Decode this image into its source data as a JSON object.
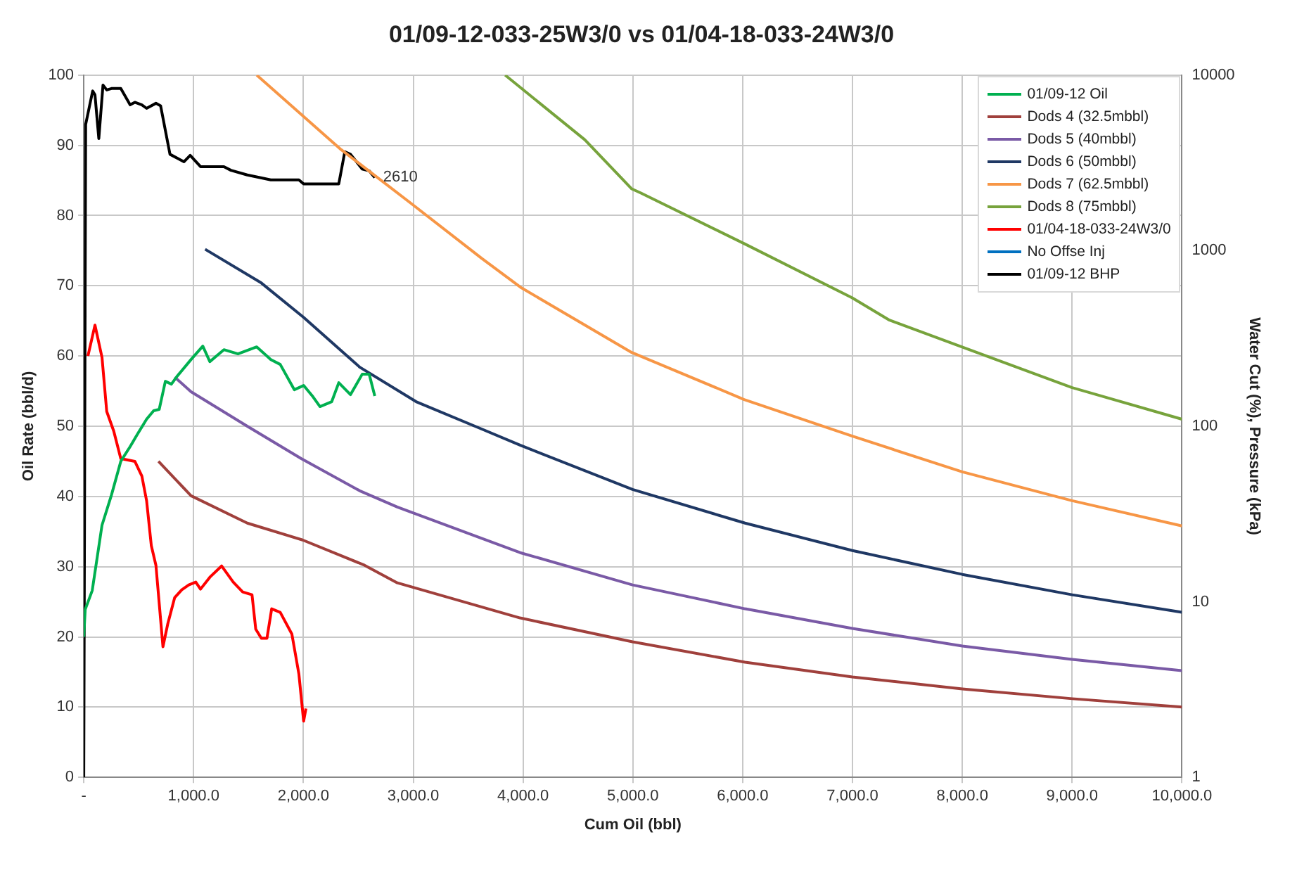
{
  "chart_data": {
    "type": "line",
    "title": "01/09-12-033-25W3/0 vs 01/04-18-033-24W3/0",
    "xlabel": "Cum Oil (bbl)",
    "ylabel": "Oil Rate (bbl/d)",
    "y2label": "Water Cut (%), Pressure (kPa)",
    "xlim": [
      0,
      10000
    ],
    "xticks": [
      {
        "value": 0,
        "label": "-"
      },
      {
        "value": 1000,
        "label": "1,000.0"
      },
      {
        "value": 2000,
        "label": "2,000.0"
      },
      {
        "value": 3000,
        "label": "3,000.0"
      },
      {
        "value": 4000,
        "label": "4,000.0"
      },
      {
        "value": 5000,
        "label": "5,000.0"
      },
      {
        "value": 6000,
        "label": "6,000.0"
      },
      {
        "value": 7000,
        "label": "7,000.0"
      },
      {
        "value": 8000,
        "label": "8,000.0"
      },
      {
        "value": 9000,
        "label": "9,000.0"
      },
      {
        "value": 10000,
        "label": "10,000.0"
      }
    ],
    "ylim": [
      0,
      100
    ],
    "yticks": [
      0,
      10,
      20,
      30,
      40,
      50,
      60,
      70,
      80,
      90,
      100
    ],
    "y2lim": [
      1,
      10000
    ],
    "y2ticks": [
      1,
      10,
      100,
      1000,
      10000
    ],
    "log": "y2",
    "grid": true,
    "legend": "top right",
    "marker": "none",
    "line_style": "solid",
    "annotations": [
      "2610"
    ],
    "series": [
      {
        "name": "01/09-12 Oil",
        "color": "#00b050",
        "x": [
          0,
          13,
          77,
          166,
          252,
          337,
          422,
          486,
          572,
          636,
          687,
          743,
          798,
          849,
          977,
          1084,
          1148,
          1276,
          1404,
          1575,
          1703,
          1789,
          1917,
          2002,
          2087,
          2151,
          2258,
          2322,
          2429,
          2535,
          2599,
          2650
        ],
        "values": [
          20,
          23.9,
          26.6,
          35.9,
          40.2,
          45,
          47.1,
          48.8,
          51,
          52.2,
          52.4,
          56.4,
          56,
          57.1,
          59.5,
          61.4,
          59.2,
          60.9,
          60.3,
          61.3,
          59.5,
          58.8,
          55.2,
          55.8,
          54.2,
          52.8,
          53.5,
          56.2,
          54.5,
          57.4,
          57.4,
          54.3
        ]
      },
      {
        "name": "Dods 4 (32.5mbbl)",
        "color": "#a0403c",
        "x": [
          680,
          977,
          1489,
          1993,
          2557,
          2855,
          3973,
          4997,
          6022,
          6999,
          8000,
          9001,
          10000
        ],
        "values": [
          45,
          40.1,
          36.2,
          33.8,
          30.2,
          27.7,
          22.7,
          19.3,
          16.4,
          14.3,
          12.6,
          11.2,
          10
        ]
      },
      {
        "name": "Dods 5 (40mbbl)",
        "color": "#7a5aa6",
        "x": [
          828,
          977,
          1489,
          1980,
          2514,
          2855,
          3973,
          4997,
          6022,
          6999,
          8000,
          9000,
          10000
        ],
        "values": [
          57,
          54.9,
          50,
          45.4,
          40.8,
          38.5,
          32,
          27.4,
          24,
          21.2,
          18.7,
          16.8,
          15.2
        ]
      },
      {
        "name": "Dods 6 (50mbbl)",
        "color": "#1f3864",
        "x": [
          1105,
          1617,
          2002,
          2514,
          3026,
          3624,
          3973,
          4997,
          6022,
          6999,
          8000,
          9000,
          10000
        ],
        "values": [
          75.2,
          70.4,
          65.5,
          58.4,
          53.5,
          49.6,
          47.3,
          41,
          36.2,
          32.3,
          28.9,
          26,
          23.5
        ]
      },
      {
        "name": "Dods 7 (62.5mbbl)",
        "color": "#f79646",
        "x": [
          1575,
          2343,
          2983,
          3624,
          3986,
          4990,
          6014,
          6995,
          8000,
          9000,
          10000
        ],
        "values": [
          100,
          89.4,
          81.7,
          73.9,
          69.7,
          60.5,
          53.8,
          48.6,
          43.5,
          39.4,
          35.8
        ]
      },
      {
        "name": "Dods 8 (75mbbl)",
        "color": "#77a33c",
        "x": [
          3837,
          4562,
          4990,
          5074,
          6014,
          6995,
          7337,
          7977,
          9000,
          10000
        ],
        "values": [
          100,
          90.8,
          83.8,
          83.2,
          76,
          68.3,
          65.1,
          61.4,
          55.5,
          51
        ]
      },
      {
        "name": "01/04-18-033-24W3/0",
        "color": "#ff0000",
        "x": [
          38,
          102,
          166,
          209,
          273,
          337,
          465,
          529,
          572,
          615,
          657,
          721,
          764,
          828,
          892,
          956,
          1020,
          1063,
          1148,
          1255,
          1361,
          1447,
          1532,
          1566,
          1617,
          1668,
          1711,
          1789,
          1895,
          1959,
          2002,
          2023
        ],
        "values": [
          60,
          64.4,
          59.8,
          52.1,
          49.3,
          45.4,
          45,
          42.9,
          39.4,
          33,
          30.2,
          18.6,
          21.8,
          25.6,
          26.7,
          27.4,
          27.8,
          26.8,
          28.5,
          30.1,
          27.8,
          26.4,
          26,
          21.1,
          19.8,
          19.8,
          24,
          23.5,
          20.4,
          14.7,
          8,
          9.8
        ]
      },
      {
        "name": "No Offse Inj",
        "color": "#0070c0"
      },
      {
        "name": "01/09-12 BHP",
        "color": "#000000",
        "axis": "y2",
        "x": [
          0,
          17,
          81,
          102,
          137,
          175,
          209,
          252,
          337,
          422,
          465,
          529,
          572,
          657,
          700,
          785,
          913,
          969,
          1063,
          1276,
          1340,
          1489,
          1703,
          1959,
          2002,
          2322,
          2377,
          2429,
          2535,
          2599,
          2650
        ],
        "values": [
          1,
          5230,
          8120,
          7720,
          4350,
          8780,
          8230,
          8390,
          8390,
          6770,
          7000,
          6770,
          6470,
          6910,
          6680,
          3540,
          3210,
          3490,
          3010,
          3010,
          2870,
          2700,
          2530,
          2530,
          2400,
          2400,
          3660,
          3540,
          2920,
          2850,
          2610
        ]
      }
    ]
  }
}
